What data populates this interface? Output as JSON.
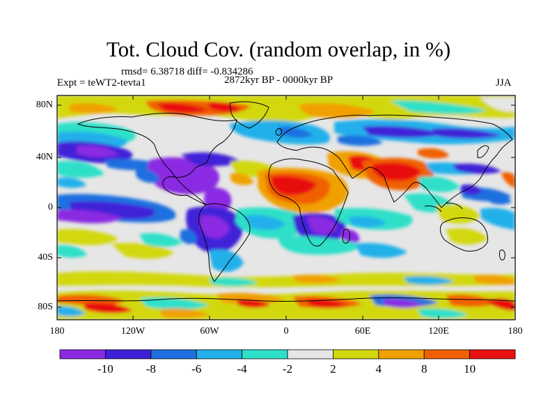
{
  "title": "Tot. Cloud Cov. (random overlap, in %)",
  "stats": "rmsd= 6.38718 diff= -0.834286",
  "period": "2872kyr BP - 0000kyr BP",
  "experiment": "Expt = teWT2-tevta1",
  "season": "JJA",
  "y_axis": {
    "ticks": [
      "80N",
      "40N",
      "0",
      "40S",
      "80S"
    ]
  },
  "x_axis": {
    "ticks": [
      "180",
      "120W",
      "60W",
      "0",
      "60E",
      "120E",
      "180"
    ]
  },
  "colorbar": {
    "colors": [
      "#8a2be2",
      "#3f20d8",
      "#1f6fe0",
      "#22b0ea",
      "#2ee0c8",
      "#e6e6e6",
      "#d2d80e",
      "#f0a000",
      "#f06000",
      "#e81010"
    ],
    "labels": [
      "-10",
      "-8",
      "-6",
      "-4",
      "-2",
      "2",
      "4",
      "8",
      "10"
    ]
  }
}
